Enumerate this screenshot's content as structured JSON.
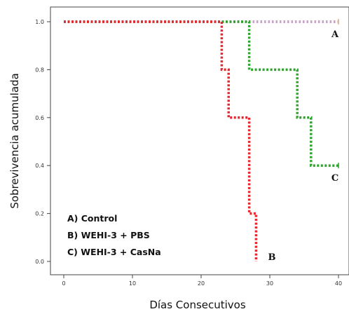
{
  "chart_data": {
    "type": "line",
    "subtype": "step",
    "xlabel": "Días Consecutivos",
    "ylabel": "Sobrevivencia acumulada",
    "xlim": [
      0,
      40
    ],
    "ylim": [
      0,
      1
    ],
    "xticks": [
      "0",
      "10",
      "20",
      "30",
      "40"
    ],
    "yticks": [
      "0.0",
      "0.2",
      "0.4",
      "0.6",
      "0.8",
      "1.0"
    ],
    "grid": false,
    "legend_position": "bottom-left",
    "legend": [
      "A) Control",
      "B) WEHI-3 + PBS",
      "C) WEHI-3 + CasNa"
    ],
    "series": [
      {
        "label": "A",
        "color": "#c9a3c7",
        "points": [
          [
            0,
            1.0
          ],
          [
            40,
            1.0
          ]
        ]
      },
      {
        "label": "B",
        "color": "#e8262d",
        "points": [
          [
            0,
            1.0
          ],
          [
            23,
            1.0
          ],
          [
            23,
            0.8
          ],
          [
            24,
            0.8
          ],
          [
            24,
            0.6
          ],
          [
            27,
            0.6
          ],
          [
            27,
            0.2
          ],
          [
            28,
            0.2
          ],
          [
            28,
            0.0
          ]
        ]
      },
      {
        "label": "C",
        "color": "#2ea42e",
        "points": [
          [
            0,
            1.0
          ],
          [
            27,
            1.0
          ],
          [
            27,
            0.8
          ],
          [
            34,
            0.8
          ],
          [
            34,
            0.6
          ],
          [
            36,
            0.6
          ],
          [
            36,
            0.4
          ],
          [
            40,
            0.4
          ]
        ]
      }
    ]
  }
}
